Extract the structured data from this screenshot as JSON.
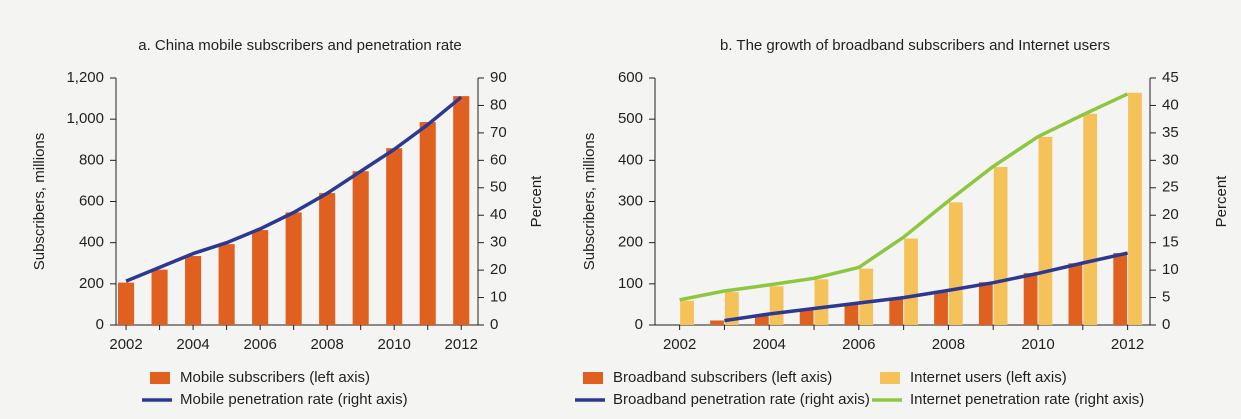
{
  "chart_data": [
    {
      "type": "bar",
      "title": "a. China mobile subscribers and penetration rate",
      "ylabel": "Subscribers, millions",
      "y2label": "Percent",
      "x": [
        2002,
        2003,
        2004,
        2005,
        2006,
        2007,
        2008,
        2009,
        2010,
        2011,
        2012
      ],
      "xlim": [
        2001.7,
        2012.5
      ],
      "xticks": [
        2002,
        2004,
        2006,
        2008,
        2010,
        2012
      ],
      "ylim": [
        0,
        1200
      ],
      "yticks": [
        0,
        200,
        400,
        600,
        800,
        {
          "value": 1000,
          "label": "1,000"
        },
        {
          "value": 1200,
          "label": "1,200"
        }
      ],
      "y2lim": [
        0,
        90
      ],
      "y2ticks": [
        0,
        10,
        20,
        30,
        40,
        50,
        60,
        70,
        80,
        90
      ],
      "series": [
        {
          "name": "Mobile subscribers (left axis)",
          "type": "bar",
          "color": "#e0601f",
          "values": [
            206,
            269,
            335,
            393,
            461,
            547,
            641,
            747,
            859,
            986,
            1112
          ]
        },
        {
          "name": "Mobile penetration rate (right axis)",
          "type": "line",
          "axis": "y2",
          "color": "#2b3990",
          "values": [
            16,
            21,
            26,
            30,
            35,
            41,
            48,
            56,
            64,
            73,
            83
          ]
        }
      ]
    },
    {
      "type": "bar",
      "title": "b. The growth of broadband subscribers and Internet users",
      "ylabel": "Subscribers, millions",
      "y2label": "Percent",
      "x": [
        2002,
        2003,
        2004,
        2005,
        2006,
        2007,
        2008,
        2009,
        2010,
        2011,
        2012
      ],
      "xlim": [
        2001.45,
        2012.5
      ],
      "xticks": [
        2002,
        2004,
        2006,
        2008,
        2010,
        2012
      ],
      "ylim": [
        0,
        600
      ],
      "yticks": [
        0,
        100,
        200,
        300,
        400,
        500,
        600
      ],
      "y2lim": [
        0,
        45
      ],
      "y2ticks": [
        0,
        5,
        10,
        15,
        20,
        25,
        30,
        35,
        40,
        45
      ],
      "series": [
        {
          "name": "Broadband subscribers (left axis)",
          "type": "bar",
          "color": "#e0601f",
          "values": [
            null,
            11,
            25,
            37,
            52,
            66,
            83,
            104,
            126,
            150,
            175
          ]
        },
        {
          "name": "Internet users (left axis)",
          "type": "bar",
          "color": "#f5c25a",
          "values": [
            59,
            80,
            94,
            111,
            137,
            210,
            298,
            384,
            457,
            513,
            564
          ]
        },
        {
          "name": "Broadband penetration rate (right axis)",
          "type": "line",
          "axis": "y2",
          "color": "#2b3990",
          "values": [
            null,
            0.8,
            2,
            3,
            4,
            5,
            6.3,
            7.7,
            9.4,
            11.3,
            13.1
          ]
        },
        {
          "name": "Internet penetration rate (right axis)",
          "type": "line",
          "axis": "y2",
          "color": "#8dc63f",
          "values": [
            4.6,
            6.2,
            7.3,
            8.5,
            10.5,
            16,
            22.6,
            28.9,
            34.3,
            38.3,
            42.1
          ]
        }
      ]
    }
  ]
}
